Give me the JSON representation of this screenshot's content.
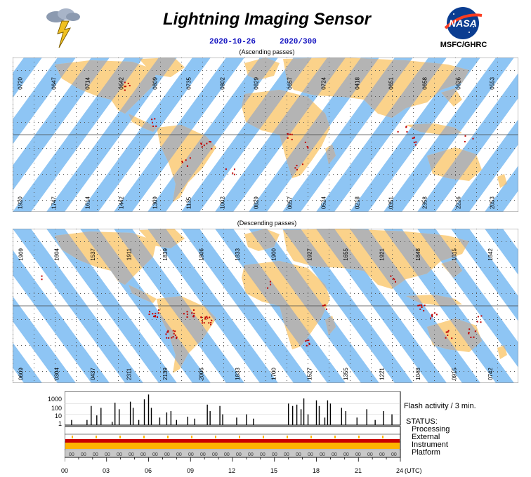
{
  "header": {
    "title": "Lightning Imaging Sensor",
    "date": "2020-10-26",
    "doy": "2020/300",
    "org": "MSFC/GHRC",
    "logo_text": "NASA",
    "lightning_icon": "lightning-cloud-icon"
  },
  "maps": {
    "ascending_caption": "(Ascending passes)",
    "descending_caption": "(Descending passes)",
    "ascending_top_times": [
      "0720",
      "0647",
      "0714",
      "0642",
      "0809",
      "0735",
      "0802",
      "0829",
      "0657",
      "0724",
      "0418",
      "0651",
      "0658",
      "0626",
      "0553"
    ],
    "ascending_bottom_times": [
      "1920",
      "1747",
      "1614",
      "1442",
      "1309",
      "1135",
      "1002",
      "0829",
      "0657",
      "0524",
      "0218",
      "0351",
      "2358",
      "2226",
      "2053"
    ],
    "descending_top_times": [
      "1909",
      "1604",
      "1537",
      "1911",
      "1839",
      "1806",
      "1833",
      "1900",
      "1927",
      "1655",
      "1921",
      "1848",
      "1015",
      "1842"
    ],
    "descending_bottom_times": [
      "0609",
      "0304",
      "0437",
      "2311",
      "2139",
      "2006",
      "1833",
      "1700",
      "1527",
      "1355",
      "1221",
      "1048",
      "0915",
      "0742"
    ]
  },
  "chart_data": {
    "type": "bar",
    "title": "Flash activity / 3 min.",
    "yscale": "log",
    "yticks": [
      "1000",
      "100",
      "10",
      "1"
    ],
    "xlabel": "(UTC)",
    "xticks": [
      "00",
      "03",
      "06",
      "09",
      "12",
      "15",
      "18",
      "21",
      "24"
    ],
    "xlim": [
      0,
      24
    ],
    "ylim": [
      1,
      1000
    ],
    "series": [
      {
        "values": [
          [
            0.5,
            3
          ],
          [
            1.6,
            3
          ],
          [
            1.9,
            60
          ],
          [
            2.3,
            8
          ],
          [
            2.6,
            40
          ],
          [
            3.4,
            2
          ],
          [
            3.6,
            120
          ],
          [
            3.9,
            30
          ],
          [
            4.7,
            150
          ],
          [
            4.9,
            40
          ],
          [
            5.3,
            3
          ],
          [
            5.7,
            250
          ],
          [
            6.0,
            700
          ],
          [
            6.2,
            40
          ],
          [
            6.8,
            5
          ],
          [
            7.3,
            15
          ],
          [
            7.6,
            20
          ],
          [
            8.0,
            3
          ],
          [
            8.8,
            6
          ],
          [
            9.3,
            4
          ],
          [
            10.2,
            80
          ],
          [
            10.4,
            20
          ],
          [
            11.1,
            60
          ],
          [
            11.3,
            10
          ],
          [
            12.3,
            5
          ],
          [
            13.0,
            10
          ],
          [
            13.5,
            4
          ],
          [
            16.0,
            100
          ],
          [
            16.3,
            60
          ],
          [
            16.6,
            80
          ],
          [
            16.9,
            30
          ],
          [
            17.1,
            300
          ],
          [
            17.4,
            10
          ],
          [
            18.0,
            200
          ],
          [
            18.2,
            60
          ],
          [
            18.6,
            5
          ],
          [
            18.8,
            200
          ],
          [
            19.0,
            100
          ],
          [
            19.8,
            40
          ],
          [
            20.1,
            20
          ],
          [
            20.9,
            5
          ],
          [
            21.6,
            30
          ],
          [
            22.2,
            3
          ],
          [
            22.8,
            20
          ],
          [
            23.4,
            10
          ]
        ]
      }
    ],
    "status_rows": {
      "heading": "STATUS:",
      "labels": [
        "Processing",
        "External",
        "Instrument",
        "Platform"
      ],
      "platform_marker": "00"
    }
  },
  "colors": {
    "ocean_swath": "#8ec5f4",
    "land": "#fbd28a",
    "land_gray": "#b4b4b4",
    "lightning": "#c00000",
    "status_orange": "#ffb400",
    "status_red": "#c80000",
    "platform_gray": "#c8c8c8"
  }
}
